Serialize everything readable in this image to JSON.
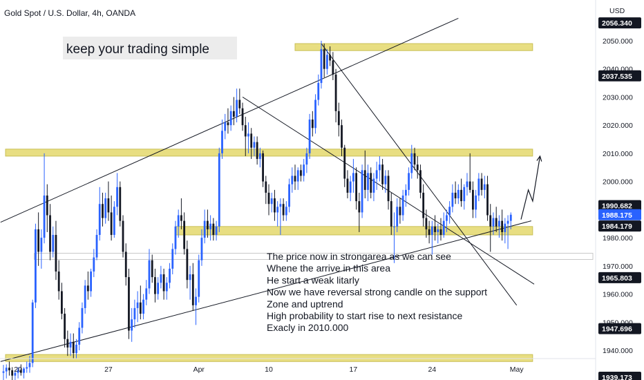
{
  "header": {
    "title": "Gold Spot / U.S. Dollar, 4h, OANDA",
    "currency": "USD"
  },
  "banner": {
    "text": "keep your trading simple"
  },
  "chart_data": {
    "type": "candlestick",
    "symbol": "Gold Spot / U.S. Dollar",
    "interval": "4h",
    "source": "OANDA",
    "ylim": [
      1936,
      2057
    ],
    "y_ticks": [
      1940,
      1950,
      1960,
      1970,
      1980,
      1990,
      2000,
      2010,
      2020,
      2030,
      2040,
      2050
    ],
    "y_tick_labels": [
      "1940.000",
      "1950.000",
      "1960.000",
      "1970.000",
      "1980.000",
      "1990.000",
      "2000.000",
      "2010.000",
      "2020.000",
      "2030.000",
      "2040.000",
      "2050.000"
    ],
    "x_labels": [
      {
        "text": "20",
        "bar": 5
      },
      {
        "text": "27",
        "bar": 36
      },
      {
        "text": "Apr",
        "bar": 67
      },
      {
        "text": "10",
        "bar": 91
      },
      {
        "text": "17",
        "bar": 120
      },
      {
        "text": "24",
        "bar": 147
      },
      {
        "text": "May",
        "bar": 176
      }
    ],
    "bars_visible": 181,
    "candles": [
      [
        1932.0,
        1934.8,
        1928.0,
        1932.5
      ],
      [
        1932.5,
        1935.0,
        1930.0,
        1933.8
      ],
      [
        1933.8,
        1936.0,
        1931.0,
        1932.9
      ],
      [
        1932.9,
        1934.0,
        1929.0,
        1931.0
      ],
      [
        1931.0,
        1933.0,
        1928.0,
        1932.0
      ],
      [
        1932.0,
        1934.0,
        1930.0,
        1933.0
      ],
      [
        1933.0,
        1935.0,
        1931.0,
        1932.0
      ],
      [
        1932.0,
        1934.0,
        1930.0,
        1933.5
      ],
      [
        1933.5,
        1936.0,
        1932.0,
        1934.0
      ],
      [
        1934.0,
        1938.0,
        1932.0,
        1935.5
      ],
      [
        1935.5,
        1958.0,
        1934.0,
        1957.0
      ],
      [
        1957.0,
        1985.0,
        1955.0,
        1983.0
      ],
      [
        1983.0,
        1989.0,
        1970.0,
        1975.0
      ],
      [
        1975.0,
        1983.0,
        1969.0,
        1980.0
      ],
      [
        1980.0,
        2010.0,
        1978.0,
        1995.0
      ],
      [
        1995.0,
        1999.0,
        1982.0,
        1988.0
      ],
      [
        1988.0,
        1992.0,
        1972.0,
        1975.0
      ],
      [
        1975.0,
        1984.0,
        1973.0,
        1981.0
      ],
      [
        1981.0,
        1986.0,
        1965.0,
        1968.0
      ],
      [
        1968.0,
        1972.0,
        1958.0,
        1961.0
      ],
      [
        1961.0,
        1964.0,
        1951.0,
        1953.0
      ],
      [
        1953.0,
        1955.0,
        1941.0,
        1944.0
      ],
      [
        1944.0,
        1947.0,
        1938.0,
        1941.0
      ],
      [
        1941.0,
        1946.0,
        1938.0,
        1943.0
      ],
      [
        1943.0,
        1946.0,
        1937.0,
        1939.0
      ],
      [
        1939.0,
        1944.0,
        1937.0,
        1942.0
      ],
      [
        1942.0,
        1950.0,
        1940.0,
        1948.0
      ],
      [
        1948.0,
        1957.0,
        1946.0,
        1955.0
      ],
      [
        1955.0,
        1965.0,
        1953.0,
        1963.0
      ],
      [
        1963.0,
        1968.0,
        1958.0,
        1961.0
      ],
      [
        1961.0,
        1969.0,
        1959.0,
        1968.0
      ],
      [
        1968.0,
        1976.0,
        1966.0,
        1973.0
      ],
      [
        1973.0,
        1983.0,
        1972.0,
        1981.0
      ],
      [
        1981.0,
        1998.0,
        1979.0,
        1992.0
      ],
      [
        1992.0,
        1996.0,
        1984.0,
        1987.0
      ],
      [
        1987.0,
        1996.0,
        1985.0,
        1994.0
      ],
      [
        1994.0,
        2000.0,
        1986.0,
        1989.0
      ],
      [
        1989.0,
        1995.0,
        1979.0,
        1981.0
      ],
      [
        1981.0,
        1993.0,
        1980.0,
        1991.0
      ],
      [
        1991.0,
        2003.0,
        1988.0,
        1998.0
      ],
      [
        1998.0,
        2000.0,
        1984.0,
        1986.0
      ],
      [
        1986.0,
        1988.0,
        1973.0,
        1975.0
      ],
      [
        1975.0,
        1978.0,
        1963.0,
        1966.0
      ],
      [
        1966.0,
        1969.0,
        1944.0,
        1947.0
      ],
      [
        1947.0,
        1955.0,
        1943.0,
        1951.0
      ],
      [
        1951.0,
        1958.0,
        1948.0,
        1955.0
      ],
      [
        1955.0,
        1961.0,
        1950.0,
        1957.0
      ],
      [
        1957.0,
        1963.0,
        1951.0,
        1953.0
      ],
      [
        1953.0,
        1960.0,
        1951.0,
        1958.0
      ],
      [
        1958.0,
        1965.0,
        1956.0,
        1962.0
      ],
      [
        1962.0,
        1976.0,
        1960.0,
        1972.0
      ],
      [
        1972.0,
        1974.0,
        1964.0,
        1966.0
      ],
      [
        1966.0,
        1969.0,
        1957.0,
        1960.0
      ],
      [
        1960.0,
        1966.0,
        1958.0,
        1964.0
      ],
      [
        1964.0,
        1970.0,
        1962.0,
        1967.0
      ],
      [
        1967.0,
        1969.0,
        1958.0,
        1961.0
      ],
      [
        1961.0,
        1966.0,
        1958.0,
        1964.0
      ],
      [
        1964.0,
        1971.0,
        1962.0,
        1969.0
      ],
      [
        1969.0,
        1978.0,
        1967.0,
        1976.0
      ],
      [
        1976.0,
        1986.0,
        1974.0,
        1984.0
      ],
      [
        1984.0,
        1990.0,
        1980.0,
        1988.0
      ],
      [
        1988.0,
        1994.0,
        1983.0,
        1986.0
      ],
      [
        1986.0,
        1989.0,
        1974.0,
        1976.0
      ],
      [
        1976.0,
        1979.0,
        1962.0,
        1965.0
      ],
      [
        1965.0,
        1970.0,
        1958.0,
        1967.0
      ],
      [
        1967.0,
        1971.0,
        1954.0,
        1956.0
      ],
      [
        1956.0,
        1962.0,
        1949.0,
        1959.0
      ],
      [
        1959.0,
        1974.0,
        1957.0,
        1972.0
      ],
      [
        1972.0,
        1983.0,
        1970.0,
        1980.0
      ],
      [
        1980.0,
        1990.0,
        1978.0,
        1986.0
      ],
      [
        1986.0,
        1990.0,
        1980.0,
        1983.0
      ],
      [
        1983.0,
        1988.0,
        1979.0,
        1985.0
      ],
      [
        1985.0,
        1987.0,
        1979.0,
        1981.0
      ],
      [
        1981.0,
        1986.0,
        1979.0,
        1984.0
      ],
      [
        1984.0,
        2012.0,
        1982.0,
        2010.0
      ],
      [
        2010.0,
        2022.0,
        2008.0,
        2018.0
      ],
      [
        2018.0,
        2024.0,
        2015.0,
        2021.0
      ],
      [
        2021.0,
        2026.0,
        2017.0,
        2020.0
      ],
      [
        2020.0,
        2027.0,
        2018.0,
        2025.0
      ],
      [
        2025.0,
        2030.0,
        2020.0,
        2023.0
      ],
      [
        2023.0,
        2033.0,
        2021.0,
        2029.0
      ],
      [
        2029.0,
        2033.0,
        2024.0,
        2026.0
      ],
      [
        2026.0,
        2028.0,
        2018.0,
        2020.0
      ],
      [
        2020.0,
        2023.0,
        2009.0,
        2016.0
      ],
      [
        2016.0,
        2021.0,
        2010.0,
        2017.0
      ],
      [
        2017.0,
        2019.0,
        2008.0,
        2012.0
      ],
      [
        2012.0,
        2016.0,
        2009.0,
        2014.0
      ],
      [
        2014.0,
        2016.0,
        2006.0,
        2008.0
      ],
      [
        2008.0,
        2012.0,
        2005.0,
        2010.0
      ],
      [
        2010.0,
        2011.0,
        1998.0,
        2000.0
      ],
      [
        2000.0,
        2002.0,
        1992.0,
        1996.0
      ],
      [
        1996.0,
        1999.0,
        1988.0,
        1992.0
      ],
      [
        1992.0,
        1996.0,
        1989.0,
        1994.0
      ],
      [
        1994.0,
        1997.0,
        1986.0,
        1989.0
      ],
      [
        1989.0,
        1993.0,
        1984.0,
        1991.0
      ],
      [
        1991.0,
        1994.0,
        1981.0,
        1992.0
      ],
      [
        1992.0,
        1994.0,
        1986.0,
        1988.0
      ],
      [
        1988.0,
        1993.0,
        1986.0,
        1991.0
      ],
      [
        1991.0,
        2001.0,
        1989.0,
        1999.0
      ],
      [
        1999.0,
        2005.0,
        1996.0,
        2002.0
      ],
      [
        2002.0,
        2006.0,
        1997.0,
        2000.0
      ],
      [
        2000.0,
        2005.0,
        1997.0,
        2004.0
      ],
      [
        2004.0,
        2006.0,
        2000.0,
        2002.0
      ],
      [
        2002.0,
        2008.0,
        2000.0,
        2006.0
      ],
      [
        2006.0,
        2012.0,
        2003.0,
        2010.0
      ],
      [
        2010.0,
        2024.0,
        2008.0,
        2022.0
      ],
      [
        2022.0,
        2025.0,
        2016.0,
        2019.0
      ],
      [
        2019.0,
        2031.0,
        2017.0,
        2029.0
      ],
      [
        2029.0,
        2038.0,
        2027.0,
        2035.0
      ],
      [
        2035.0,
        2050.0,
        2033.0,
        2047.0
      ],
      [
        2047.0,
        2049.0,
        2037.0,
        2040.0
      ],
      [
        2040.0,
        2047.0,
        2038.0,
        2045.0
      ],
      [
        2045.0,
        2048.0,
        2041.0,
        2043.0
      ],
      [
        2043.0,
        2046.0,
        2036.0,
        2038.0
      ],
      [
        2038.0,
        2040.0,
        2021.0,
        2025.0
      ],
      [
        2025.0,
        2028.0,
        2016.0,
        2020.0
      ],
      [
        2020.0,
        2022.0,
        2009.0,
        2012.0
      ],
      [
        2012.0,
        2013.0,
        1998.0,
        2001.0
      ],
      [
        2001.0,
        2004.0,
        1994.0,
        1996.0
      ],
      [
        1996.0,
        2002.0,
        1993.0,
        2000.0
      ],
      [
        2000.0,
        2008.0,
        1996.0,
        2003.0
      ],
      [
        2003.0,
        2005.0,
        1990.0,
        1993.0
      ],
      [
        1993.0,
        1996.0,
        1982.0,
        1989.0
      ],
      [
        1989.0,
        2006.0,
        1987.0,
        2004.0
      ],
      [
        2004.0,
        2011.0,
        1994.0,
        1997.0
      ],
      [
        1997.0,
        2006.0,
        1993.0,
        2003.0
      ],
      [
        2003.0,
        2005.0,
        1994.0,
        1996.0
      ],
      [
        1996.0,
        2003.0,
        1993.0,
        2001.0
      ],
      [
        2001.0,
        2007.0,
        1997.0,
        2004.0
      ],
      [
        2004.0,
        2009.0,
        2000.0,
        2006.0
      ],
      [
        2006.0,
        2008.0,
        1997.0,
        1999.0
      ],
      [
        1999.0,
        2004.0,
        1996.0,
        2002.0
      ],
      [
        2002.0,
        2004.0,
        1990.0,
        1993.0
      ],
      [
        1993.0,
        1996.0,
        1981.0,
        1984.0
      ],
      [
        1984.0,
        1989.0,
        1971.0,
        1984.0
      ],
      [
        1984.0,
        1994.0,
        1982.0,
        1991.0
      ],
      [
        1991.0,
        1994.0,
        1985.0,
        1988.0
      ],
      [
        1988.0,
        1997.0,
        1986.0,
        1995.0
      ],
      [
        1995.0,
        1999.0,
        1991.0,
        1997.0
      ],
      [
        1997.0,
        2005.0,
        1995.0,
        2003.0
      ],
      [
        2003.0,
        2013.0,
        2001.0,
        2010.0
      ],
      [
        2010.0,
        2012.0,
        2004.0,
        2006.0
      ],
      [
        2006.0,
        2009.0,
        2001.0,
        2004.0
      ],
      [
        2004.0,
        2006.0,
        1994.0,
        1996.0
      ],
      [
        1996.0,
        1999.0,
        1984.0,
        1987.0
      ],
      [
        1987.0,
        1990.0,
        1980.0,
        1983.0
      ],
      [
        1983.0,
        1986.0,
        1978.0,
        1981.0
      ],
      [
        1981.0,
        1986.0,
        1974.0,
        1984.0
      ],
      [
        1984.0,
        1988.0,
        1979.0,
        1982.0
      ],
      [
        1982.0,
        1985.0,
        1978.0,
        1983.0
      ],
      [
        1983.0,
        1987.0,
        1979.0,
        1981.0
      ],
      [
        1981.0,
        1989.0,
        1980.0,
        1986.0
      ],
      [
        1986.0,
        1990.0,
        1982.0,
        1988.0
      ],
      [
        1988.0,
        1993.0,
        1985.0,
        1991.0
      ],
      [
        1991.0,
        1999.0,
        1989.0,
        1996.0
      ],
      [
        1996.0,
        2000.0,
        1992.0,
        1994.0
      ],
      [
        1994.0,
        1999.0,
        1992.0,
        1997.0
      ],
      [
        1997.0,
        2001.0,
        1991.0,
        1993.0
      ],
      [
        1993.0,
        1999.0,
        1990.0,
        1998.0
      ],
      [
        1998.0,
        2003.0,
        1995.0,
        2000.0
      ],
      [
        2000.0,
        2010.0,
        1996.0,
        1997.0
      ],
      [
        1997.0,
        2000.0,
        1987.0,
        1990.0
      ],
      [
        1990.0,
        1997.0,
        1987.0,
        1995.0
      ],
      [
        1995.0,
        2003.0,
        1993.0,
        2001.0
      ],
      [
        2001.0,
        2003.0,
        1995.0,
        1997.0
      ],
      [
        1997.0,
        2002.0,
        1994.0,
        1999.0
      ],
      [
        1999.0,
        2002.0,
        1986.0,
        1988.0
      ],
      [
        1988.0,
        1992.0,
        1975.0,
        1984.0
      ],
      [
        1984.0,
        1989.0,
        1981.0,
        1987.0
      ],
      [
        1987.0,
        1991.0,
        1982.0,
        1984.0
      ],
      [
        1984.0,
        1988.0,
        1980.0,
        1986.0
      ],
      [
        1986.0,
        1990.0,
        1979.0,
        1982.0
      ],
      [
        1982.0,
        1987.0,
        1978.0,
        1985.0
      ],
      [
        1985.0,
        1988.0,
        1976.0,
        1986.0
      ],
      [
        1986.0,
        1989.0,
        1983.0,
        1988.175
      ]
    ],
    "colors": {
      "up": "#2962ff",
      "down": "#131722",
      "zone": "#e8de82",
      "zone_border": "#c9bf55",
      "label_bg": "#131722",
      "current_bg": "#2962ff"
    },
    "zones": [
      {
        "y_from": 2047,
        "y_to": 2048.5,
        "from_bar": 100,
        "to_bar": 181
      },
      {
        "y_from": 2009.5,
        "y_to": 2011,
        "from_bar": 0,
        "to_bar": 181
      },
      {
        "y_from": 1981.5,
        "y_to": 1983.5,
        "from_bar": 59,
        "to_bar": 181
      },
      {
        "y_from": 1936.5,
        "y_to": 1938,
        "from_bar": 0,
        "to_bar": 181
      }
    ],
    "white_band": {
      "y_from": 1972.5,
      "y_to": 1974,
      "from_bar": 11,
      "to_bar": 181
    },
    "trendlines": [
      {
        "from": [
          -1,
          1985.5
        ],
        "to": [
          156,
          2058
        ]
      },
      {
        "from": [
          -1,
          1936
        ],
        "to": [
          181,
          1986
        ]
      },
      {
        "from": [
          82,
          2030
        ],
        "to": [
          182,
          1963.5
        ]
      },
      {
        "from": [
          109,
          2049
        ],
        "to": [
          176,
          1956
        ]
      }
    ],
    "projection": [
      [
        177.5,
        1986.5
      ],
      [
        180,
        1997
      ],
      [
        181.5,
        1993
      ],
      [
        184,
        2009
      ]
    ],
    "price_labels": [
      {
        "text": "2056.340",
        "value": 2056.34,
        "style": "dark"
      },
      {
        "text": "2037.535",
        "value": 2037.535,
        "style": "dark"
      },
      {
        "text": "1990.682",
        "value": 1990.682,
        "style": "dark"
      },
      {
        "text": "1988.175",
        "value": 1988.175,
        "style": "current"
      },
      {
        "text": "1984.179",
        "value": 1984.179,
        "style": "dark"
      },
      {
        "text": "1965.803",
        "value": 1965.803,
        "style": "dark"
      },
      {
        "text": "1947.696",
        "value": 1947.696,
        "style": "dark"
      },
      {
        "text": "1939.173",
        "value": 1939.173,
        "style": "dark"
      }
    ]
  },
  "annotation": {
    "lines": [
      "The price now in strongarea as we can see",
      "Whene the arrive in this area",
      "He start a weak litarly",
      "Now we have reversal strong candle on the support",
      "Zone and uptrend",
      "High probability to start rise to next resistance",
      "Exacly in 2010.000"
    ]
  }
}
